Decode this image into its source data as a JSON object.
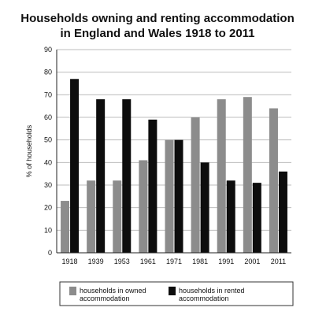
{
  "chart_data": {
    "type": "bar",
    "title_lines": [
      "Households owning and renting accommodation",
      "in England and Wales 1918 to 2011"
    ],
    "ylabel": "% of households",
    "xlabel": "",
    "ylim": [
      0,
      90
    ],
    "yticks": [
      0,
      10,
      20,
      30,
      40,
      50,
      60,
      70,
      80,
      90
    ],
    "grid": true,
    "legend_position": "bottom",
    "categories": [
      "1918",
      "1939",
      "1953",
      "1961",
      "1971",
      "1981",
      "1991",
      "2001",
      "2011"
    ],
    "series": [
      {
        "name_lines": [
          "households in owned",
          "accommodation"
        ],
        "color": "#8c8c8c",
        "values": [
          23,
          32,
          32,
          41,
          50,
          60,
          68,
          69,
          64
        ]
      },
      {
        "name_lines": [
          "households in rented",
          "accommodation"
        ],
        "color": "#0d0d0d",
        "values": [
          77,
          68,
          68,
          59,
          50,
          40,
          32,
          31,
          36
        ]
      }
    ]
  }
}
